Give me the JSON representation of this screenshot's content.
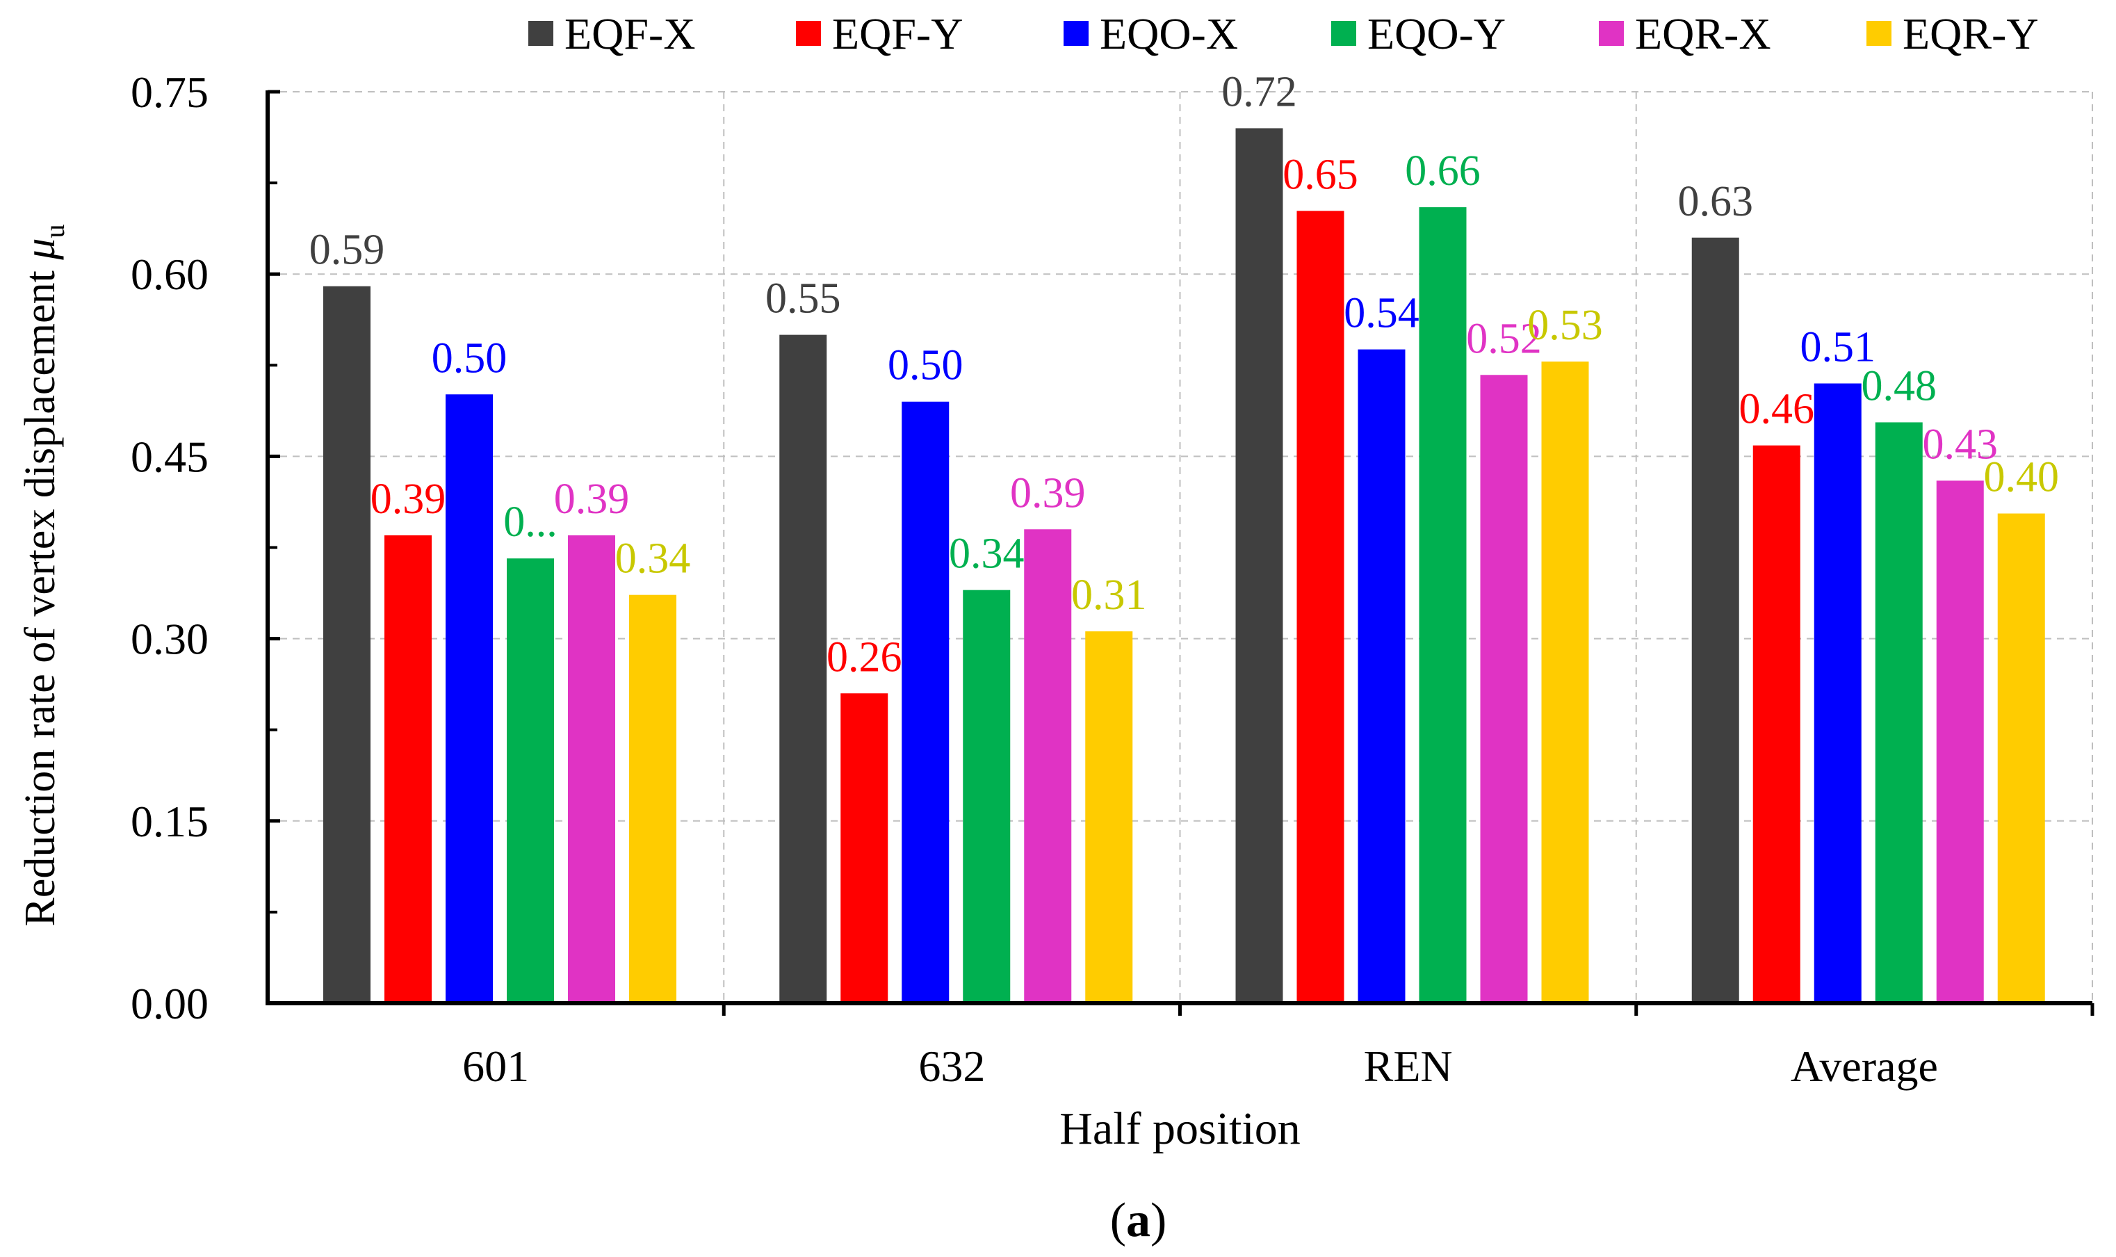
{
  "chart_data": {
    "type": "bar",
    "title": "",
    "xlabel": "Half position",
    "ylabel": "Reduction rate of vertex displacement",
    "ylabel_symbol": "μ",
    "ylabel_subscript": "u",
    "caption_open": "(",
    "caption_letter": "a",
    "caption_close": ")",
    "ylim": [
      0,
      0.75
    ],
    "yticks": [
      "0.00",
      "0.15",
      "0.30",
      "0.45",
      "0.60",
      "0.75"
    ],
    "grid": true,
    "legend_position": "top",
    "categories": [
      "601",
      "632",
      "REN",
      "Average"
    ],
    "series": [
      {
        "name": "EQF-X",
        "color": "#404040",
        "label_color": "#404040",
        "values": [
          0.59,
          0.55,
          0.72,
          0.63
        ],
        "labels": [
          "0.59",
          "0.55",
          "0.72",
          "0.63"
        ]
      },
      {
        "name": "EQF-Y",
        "color": "#ff0000",
        "label_color": "#ff0000",
        "values": [
          0.385,
          0.255,
          0.652,
          0.459
        ],
        "labels": [
          "0.39",
          "0.26",
          "0.65",
          "0.46"
        ]
      },
      {
        "name": "EQO-X",
        "color": "#0000ff",
        "label_color": "#0000ff",
        "values": [
          0.501,
          0.495,
          0.538,
          0.51
        ],
        "labels": [
          "0.50",
          "0.50",
          "0.54",
          "0.51"
        ]
      },
      {
        "name": "EQO-Y",
        "color": "#00b050",
        "label_color": "#00b050",
        "values": [
          0.366,
          0.34,
          0.655,
          0.478
        ],
        "labels": [
          "0...",
          "0.34",
          "0.66",
          "0.48"
        ]
      },
      {
        "name": "EQR-X",
        "color": "#e033c4",
        "label_color": "#e033c4",
        "values": [
          0.385,
          0.39,
          0.517,
          0.43
        ],
        "labels": [
          "0.39",
          "0.39",
          "0.52",
          "0.43"
        ]
      },
      {
        "name": "EQR-Y",
        "color": "#ffcc00",
        "label_color": "#c8c800",
        "values": [
          0.336,
          0.306,
          0.528,
          0.403
        ],
        "labels": [
          "0.34",
          "0.31",
          "0.53",
          "0.40"
        ]
      }
    ]
  }
}
